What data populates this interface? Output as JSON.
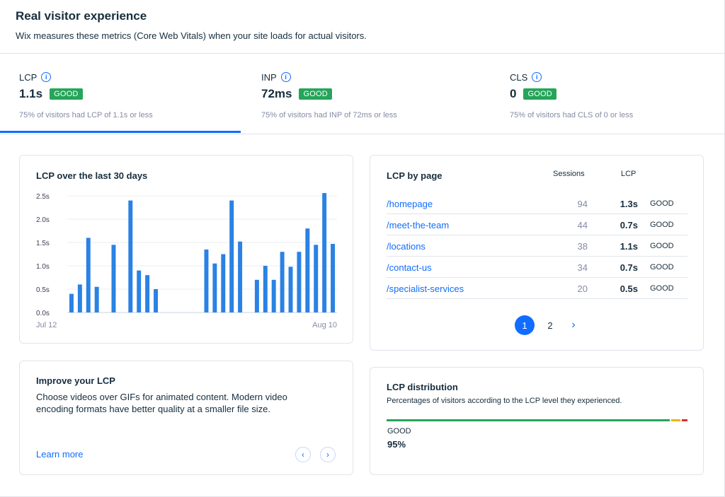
{
  "header": {
    "title": "Real visitor experience",
    "subtitle": "Wix measures these metrics (Core Web Vitals) when your site loads for actual visitors."
  },
  "metrics": [
    {
      "name": "LCP",
      "value": "1.1s",
      "badge": "GOOD",
      "description": "75% of visitors had LCP of 1.1s or less"
    },
    {
      "name": "INP",
      "value": "72ms",
      "badge": "GOOD",
      "description": "75% of visitors had INP of 72ms or less"
    },
    {
      "name": "CLS",
      "value": "0",
      "badge": "GOOD",
      "description": "75% of visitors had CLS of 0 or less"
    }
  ],
  "chart_card": {
    "title": "LCP over the last 30 days"
  },
  "chart_data": {
    "type": "bar",
    "title": "LCP over the last 30 days",
    "x_start_label": "Jul 12",
    "x_end_label": "Aug 10",
    "y_ticks": [
      "0.0s",
      "0.5s",
      "1.0s",
      "1.5s",
      "2.0s",
      "2.5s"
    ],
    "ylim": [
      0,
      2.5
    ],
    "values": [
      0.4,
      0.6,
      1.6,
      0.55,
      null,
      1.45,
      null,
      2.4,
      0.9,
      0.8,
      0.5,
      null,
      null,
      null,
      null,
      null,
      1.35,
      1.05,
      1.25,
      2.4,
      1.52,
      null,
      0.7,
      1.0,
      0.7,
      1.3,
      0.98,
      1.3,
      1.8,
      1.45,
      2.56,
      1.47
    ],
    "bar_color": "#2a82e4"
  },
  "by_page": {
    "title": "LCP by page",
    "col_sessions": "Sessions",
    "col_lcp": "LCP",
    "rows": [
      {
        "page": "/homepage",
        "sessions": "94",
        "lcp": "1.3s",
        "status": "GOOD"
      },
      {
        "page": "/meet-the-team",
        "sessions": "44",
        "lcp": "0.7s",
        "status": "GOOD"
      },
      {
        "page": "/locations",
        "sessions": "38",
        "lcp": "1.1s",
        "status": "GOOD"
      },
      {
        "page": "/contact-us",
        "sessions": "34",
        "lcp": "0.7s",
        "status": "GOOD"
      },
      {
        "page": "/specialist-services",
        "sessions": "20",
        "lcp": "0.5s",
        "status": "GOOD"
      }
    ],
    "pagination": {
      "page1": "1",
      "page2": "2",
      "next": "›"
    }
  },
  "improve": {
    "title": "Improve your LCP",
    "text": "Choose videos over GIFs for animated content. Modern video encoding formats have better quality at a smaller file size.",
    "link": "Learn more",
    "prev": "‹",
    "next": "›"
  },
  "distribution": {
    "title": "LCP distribution",
    "subtitle": "Percentages of visitors according to the LCP level they experienced.",
    "label": "GOOD",
    "percent": "95%",
    "good_fraction": 0.95,
    "needs_improvement_fraction": 0.03,
    "poor_fraction": 0.02,
    "colors": {
      "good": "#25a55a",
      "needs_improvement": "#f0b400",
      "poor": "#d8312c"
    }
  },
  "colors": {
    "accent": "#116dff",
    "good": "#25a55a"
  }
}
